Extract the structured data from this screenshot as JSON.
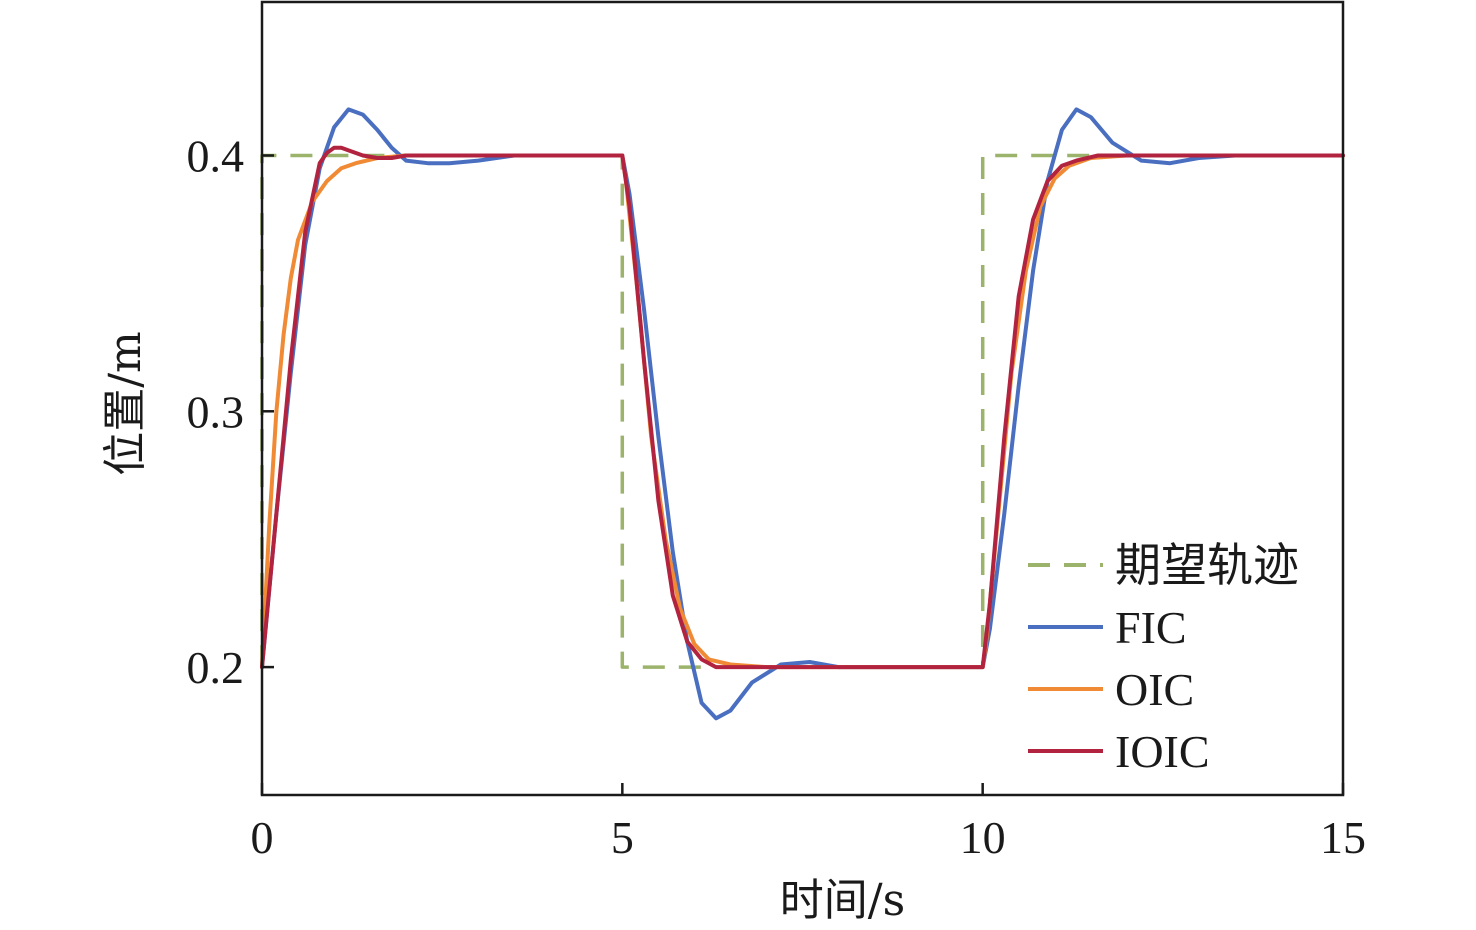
{
  "chart_data": {
    "type": "line",
    "title": "",
    "xlabel": "时间/s",
    "ylabel": "位置/m",
    "xlim": [
      0,
      15
    ],
    "ylim": [
      0.15,
      0.46
    ],
    "xticks": [
      0,
      5,
      10,
      15
    ],
    "xtick_labels": [
      "0",
      "5",
      "10",
      "15"
    ],
    "yticks": [
      0.2,
      0.3,
      0.4
    ],
    "ytick_labels": [
      "0.2",
      "0.3",
      "0.4"
    ],
    "grid": false,
    "legend_position": "bottom-right",
    "series": [
      {
        "name": "期望轨迹",
        "color": "#7a9a3a",
        "style": "dashed",
        "x": [
          0,
          0,
          5,
          5,
          10,
          10,
          15
        ],
        "y": [
          0.2,
          0.4,
          0.4,
          0.2,
          0.2,
          0.4,
          0.4
        ]
      },
      {
        "name": "FIC",
        "color": "#4a6fc0",
        "style": "solid",
        "x": [
          0,
          0.2,
          0.4,
          0.6,
          0.8,
          1.0,
          1.2,
          1.4,
          1.6,
          1.8,
          2.0,
          2.3,
          2.6,
          3.0,
          3.5,
          4.0,
          5.0,
          5.1,
          5.3,
          5.5,
          5.7,
          5.9,
          6.1,
          6.3,
          6.5,
          6.8,
          7.2,
          7.6,
          8.0,
          8.5,
          10.0,
          10.1,
          10.3,
          10.5,
          10.7,
          10.9,
          11.1,
          11.3,
          11.5,
          11.8,
          12.2,
          12.6,
          13.0,
          13.5,
          15.0
        ],
        "y": [
          0.2,
          0.26,
          0.315,
          0.365,
          0.395,
          0.411,
          0.418,
          0.416,
          0.41,
          0.403,
          0.398,
          0.397,
          0.397,
          0.398,
          0.4,
          0.4,
          0.4,
          0.385,
          0.34,
          0.29,
          0.245,
          0.21,
          0.186,
          0.18,
          0.183,
          0.194,
          0.201,
          0.202,
          0.2,
          0.2,
          0.2,
          0.215,
          0.26,
          0.31,
          0.355,
          0.39,
          0.41,
          0.418,
          0.415,
          0.405,
          0.398,
          0.397,
          0.399,
          0.4,
          0.4
        ]
      },
      {
        "name": "OIC",
        "color": "#f08a35",
        "style": "solid",
        "x": [
          0,
          0.1,
          0.2,
          0.3,
          0.4,
          0.5,
          0.7,
          0.9,
          1.1,
          1.3,
          1.6,
          2.0,
          2.5,
          3.0,
          5.0,
          5.05,
          5.2,
          5.4,
          5.6,
          5.8,
          6.0,
          6.2,
          6.5,
          7.0,
          8.0,
          10.0,
          10.05,
          10.2,
          10.4,
          10.6,
          10.8,
          11.0,
          11.2,
          11.5,
          12.0,
          13.0,
          15.0
        ],
        "y": [
          0.2,
          0.255,
          0.3,
          0.33,
          0.352,
          0.367,
          0.382,
          0.39,
          0.395,
          0.397,
          0.399,
          0.4,
          0.4,
          0.4,
          0.4,
          0.39,
          0.35,
          0.29,
          0.25,
          0.223,
          0.209,
          0.203,
          0.201,
          0.2,
          0.2,
          0.2,
          0.21,
          0.255,
          0.315,
          0.355,
          0.38,
          0.391,
          0.396,
          0.399,
          0.4,
          0.4,
          0.4
        ]
      },
      {
        "name": "IOIC",
        "color": "#b2233f",
        "style": "solid",
        "x": [
          0,
          0.2,
          0.4,
          0.6,
          0.8,
          0.9,
          1.0,
          1.1,
          1.2,
          1.4,
          1.6,
          1.8,
          2.0,
          2.5,
          3.0,
          5.0,
          5.1,
          5.3,
          5.5,
          5.7,
          5.9,
          6.1,
          6.3,
          6.6,
          7.0,
          8.0,
          10.0,
          10.1,
          10.3,
          10.5,
          10.7,
          10.9,
          11.1,
          11.3,
          11.6,
          12.0,
          13.0,
          15.0
        ],
        "y": [
          0.2,
          0.26,
          0.32,
          0.37,
          0.397,
          0.401,
          0.403,
          0.403,
          0.402,
          0.4,
          0.399,
          0.399,
          0.4,
          0.4,
          0.4,
          0.4,
          0.38,
          0.32,
          0.265,
          0.228,
          0.21,
          0.203,
          0.2,
          0.2,
          0.2,
          0.2,
          0.2,
          0.225,
          0.29,
          0.345,
          0.375,
          0.39,
          0.396,
          0.398,
          0.4,
          0.4,
          0.4,
          0.4
        ]
      }
    ]
  }
}
